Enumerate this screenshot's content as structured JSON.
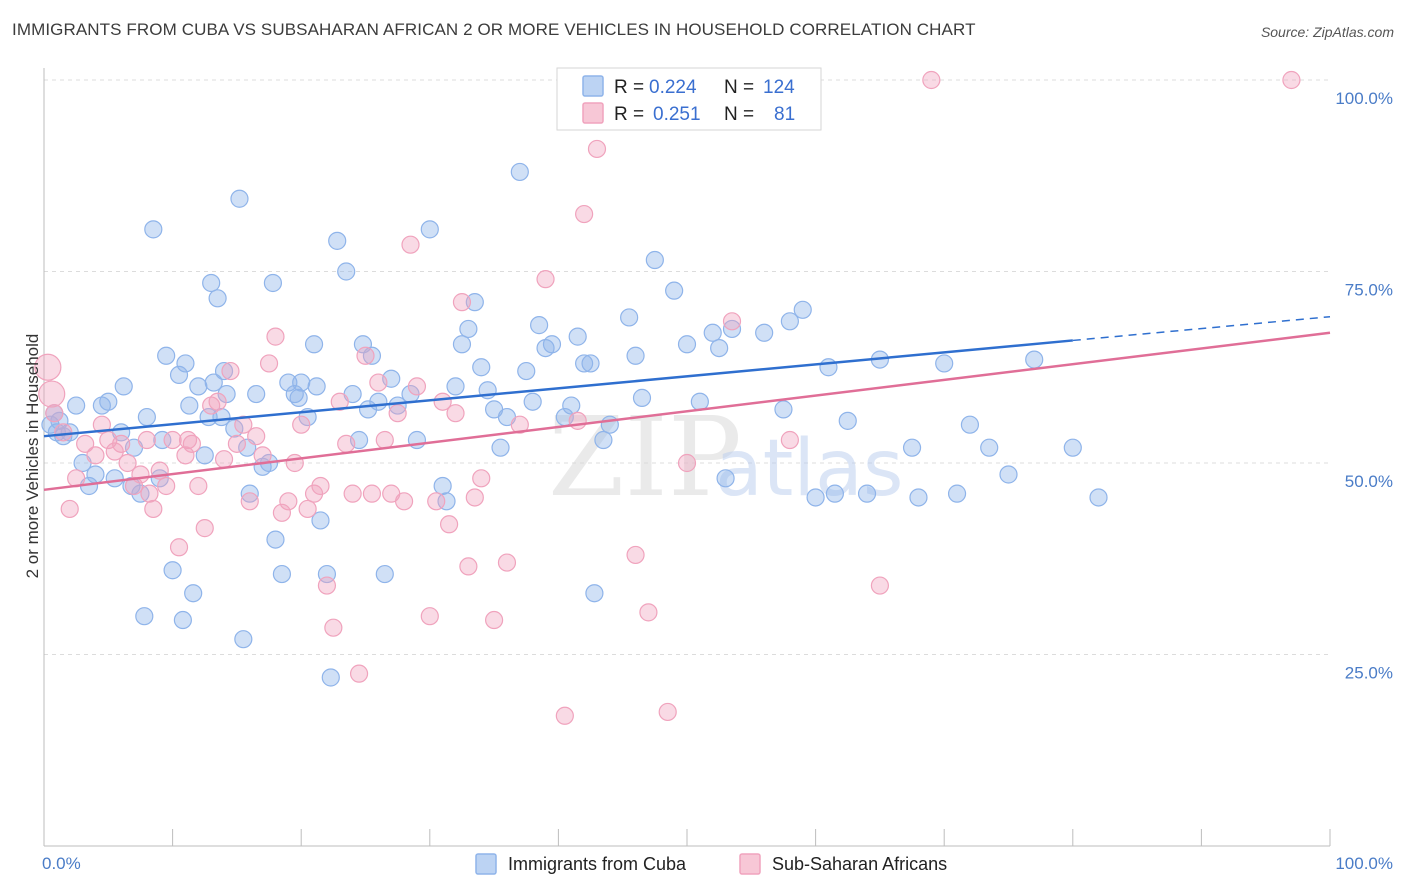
{
  "header": {
    "title": "IMMIGRANTS FROM CUBA VS SUBSAHARAN AFRICAN 2 OR MORE VEHICLES IN HOUSEHOLD CORRELATION CHART",
    "source": "Source: ZipAtlas.com"
  },
  "watermark": {
    "zip": "ZIP",
    "atlas": "atlas"
  },
  "legend": {
    "rows": [
      {
        "r_label": "R =",
        "r_value": "0.224",
        "n_label": "N =",
        "n_value": "124",
        "color": "#8fb4ea"
      },
      {
        "r_label": "R =",
        "r_value": "0.251",
        "n_label": "N =",
        "n_value": "81",
        "color": "#f0a3bd"
      }
    ]
  },
  "chart_data": {
    "type": "scatter",
    "title": "IMMIGRANTS FROM CUBA VS SUBSAHARAN AFRICAN 2 OR MORE VEHICLES IN HOUSEHOLD CORRELATION CHART",
    "xlabel": "",
    "ylabel": "2 or more Vehicles in Household",
    "xlim": [
      0,
      100
    ],
    "ylim": [
      0,
      100
    ],
    "x_ticks": [
      "0.0%",
      "100.0%"
    ],
    "y_ticks": [
      "25.0%",
      "50.0%",
      "75.0%",
      "100.0%"
    ],
    "y_tick_values": [
      25,
      50,
      75,
      100
    ],
    "grid": true,
    "legend_position": "top-center",
    "series": [
      {
        "name": "Immigrants from Cuba",
        "color": "#8fb4ea",
        "line_color": "#2f6fcf",
        "trend": {
          "x0": 0,
          "y0": 53.5,
          "x1": 80,
          "y1": 66,
          "dashed_to_x": 100,
          "dashed_to_y": 69.1
        },
        "points": [
          [
            0.5,
            55
          ],
          [
            0.8,
            56.5
          ],
          [
            1,
            54
          ],
          [
            1.2,
            55.5
          ],
          [
            1.5,
            53.5
          ],
          [
            2,
            54
          ],
          [
            2.5,
            57.5
          ],
          [
            3,
            50
          ],
          [
            3.5,
            47
          ],
          [
            4,
            48.5
          ],
          [
            4.5,
            57.5
          ],
          [
            5,
            58
          ],
          [
            5.5,
            48
          ],
          [
            6,
            54
          ],
          [
            6.2,
            60
          ],
          [
            6.8,
            47
          ],
          [
            7,
            52
          ],
          [
            7.5,
            46
          ],
          [
            7.8,
            30
          ],
          [
            8,
            56
          ],
          [
            8.5,
            80.5
          ],
          [
            9,
            48
          ],
          [
            9.2,
            53
          ],
          [
            9.5,
            64
          ],
          [
            10,
            36
          ],
          [
            10.5,
            61.5
          ],
          [
            10.8,
            29.5
          ],
          [
            11,
            63
          ],
          [
            11.3,
            57.5
          ],
          [
            11.6,
            33
          ],
          [
            12,
            60
          ],
          [
            12.5,
            51
          ],
          [
            12.8,
            56
          ],
          [
            13,
            73.5
          ],
          [
            13.2,
            60.5
          ],
          [
            13.5,
            71.5
          ],
          [
            13.8,
            56
          ],
          [
            14,
            62
          ],
          [
            14.2,
            59
          ],
          [
            14.8,
            54.5
          ],
          [
            15.2,
            84.5
          ],
          [
            15.5,
            27
          ],
          [
            15.8,
            52
          ],
          [
            16,
            46
          ],
          [
            16.5,
            59
          ],
          [
            17,
            49.5
          ],
          [
            17.5,
            50
          ],
          [
            17.8,
            73.5
          ],
          [
            18,
            40
          ],
          [
            18.5,
            35.5
          ],
          [
            19,
            60.5
          ],
          [
            19.5,
            59
          ],
          [
            19.8,
            58.5
          ],
          [
            20,
            60.5
          ],
          [
            20.5,
            56
          ],
          [
            21,
            65.5
          ],
          [
            21.2,
            60
          ],
          [
            21.5,
            42.5
          ],
          [
            22,
            35.5
          ],
          [
            22.3,
            22
          ],
          [
            22.8,
            79
          ],
          [
            23.5,
            75
          ],
          [
            24,
            59
          ],
          [
            24.5,
            53
          ],
          [
            24.8,
            65.5
          ],
          [
            25.2,
            57
          ],
          [
            25.5,
            64
          ],
          [
            26,
            58
          ],
          [
            26.5,
            35.5
          ],
          [
            27,
            61
          ],
          [
            27.5,
            57.5
          ],
          [
            28.5,
            59
          ],
          [
            29,
            53
          ],
          [
            30,
            80.5
          ],
          [
            31,
            47
          ],
          [
            31.3,
            45
          ],
          [
            32,
            60
          ],
          [
            32.5,
            65.5
          ],
          [
            33,
            67.5
          ],
          [
            33.5,
            71
          ],
          [
            34,
            62.5
          ],
          [
            34.5,
            59.5
          ],
          [
            35,
            57
          ],
          [
            35.5,
            52
          ],
          [
            36,
            56
          ],
          [
            37,
            88
          ],
          [
            37.5,
            62
          ],
          [
            38,
            58
          ],
          [
            38.5,
            68
          ],
          [
            39,
            65
          ],
          [
            39.5,
            65.5
          ],
          [
            40.5,
            56
          ],
          [
            41,
            57.5
          ],
          [
            41.5,
            66.5
          ],
          [
            42,
            63
          ],
          [
            42.5,
            63
          ],
          [
            42.8,
            33
          ],
          [
            43.5,
            53
          ],
          [
            44,
            55
          ],
          [
            45.5,
            69
          ],
          [
            46,
            64
          ],
          [
            46.5,
            58.5
          ],
          [
            47.5,
            76.5
          ],
          [
            49,
            72.5
          ],
          [
            50,
            65.5
          ],
          [
            51,
            58
          ],
          [
            52,
            67
          ],
          [
            52.5,
            65
          ],
          [
            53,
            48
          ],
          [
            53.5,
            67.5
          ],
          [
            56,
            67
          ],
          [
            57.5,
            57
          ],
          [
            58,
            68.5
          ],
          [
            59,
            70
          ],
          [
            60,
            45.5
          ],
          [
            61,
            62.5
          ],
          [
            61.5,
            46
          ],
          [
            62.5,
            55.5
          ],
          [
            64,
            46
          ],
          [
            65,
            63.5
          ],
          [
            67.5,
            52
          ],
          [
            68,
            45.5
          ],
          [
            70,
            63
          ],
          [
            71,
            46
          ],
          [
            72,
            55
          ],
          [
            73.5,
            52
          ],
          [
            75,
            48.5
          ],
          [
            77,
            63.5
          ],
          [
            80,
            52
          ],
          [
            82,
            45.5
          ]
        ]
      },
      {
        "name": "Sub-Saharan Africans",
        "color": "#f0a3bd",
        "line_color": "#e06e97",
        "trend": {
          "x0": 0,
          "y0": 46.5,
          "x1": 100,
          "y1": 67
        },
        "points": [
          [
            0.3,
            62.5
          ],
          [
            0.6,
            59
          ],
          [
            0.8,
            56.5
          ],
          [
            1.5,
            54
          ],
          [
            2,
            44
          ],
          [
            2.5,
            48
          ],
          [
            3.2,
            52.5
          ],
          [
            4,
            51
          ],
          [
            4.5,
            55
          ],
          [
            5,
            53
          ],
          [
            5.5,
            51.5
          ],
          [
            6,
            52.5
          ],
          [
            6.5,
            50
          ],
          [
            7,
            47
          ],
          [
            7.5,
            48.5
          ],
          [
            8,
            53
          ],
          [
            8.2,
            46
          ],
          [
            8.5,
            44
          ],
          [
            9,
            49
          ],
          [
            9.5,
            47
          ],
          [
            10,
            53
          ],
          [
            10.5,
            39
          ],
          [
            11,
            51
          ],
          [
            11.2,
            53
          ],
          [
            11.5,
            52.5
          ],
          [
            12,
            47
          ],
          [
            12.5,
            41.5
          ],
          [
            13,
            57.5
          ],
          [
            13.5,
            58
          ],
          [
            14,
            50.5
          ],
          [
            14.5,
            62
          ],
          [
            15,
            52.5
          ],
          [
            15.5,
            55
          ],
          [
            16,
            45
          ],
          [
            16.5,
            53.5
          ],
          [
            17,
            51
          ],
          [
            17.5,
            63
          ],
          [
            18,
            66.5
          ],
          [
            18.5,
            43.5
          ],
          [
            19,
            45
          ],
          [
            19.5,
            50
          ],
          [
            20,
            55
          ],
          [
            20.5,
            44
          ],
          [
            21,
            46
          ],
          [
            21.5,
            47
          ],
          [
            22,
            34
          ],
          [
            22.5,
            28.5
          ],
          [
            23,
            58
          ],
          [
            23.5,
            52.5
          ],
          [
            24,
            46
          ],
          [
            24.5,
            22.5
          ],
          [
            25,
            64
          ],
          [
            25.5,
            46
          ],
          [
            26,
            60.5
          ],
          [
            26.5,
            53
          ],
          [
            27,
            46
          ],
          [
            27.5,
            56.5
          ],
          [
            28,
            45
          ],
          [
            28.5,
            78.5
          ],
          [
            29,
            60
          ],
          [
            30,
            30
          ],
          [
            30.5,
            45
          ],
          [
            31,
            58
          ],
          [
            31.5,
            42
          ],
          [
            32,
            56.5
          ],
          [
            32.5,
            71
          ],
          [
            33,
            36.5
          ],
          [
            33.5,
            45.5
          ],
          [
            34,
            48
          ],
          [
            35,
            29.5
          ],
          [
            36,
            37
          ],
          [
            37,
            55
          ],
          [
            39,
            74
          ],
          [
            40.5,
            17
          ],
          [
            41.5,
            55.5
          ],
          [
            42,
            82.5
          ],
          [
            43,
            91
          ],
          [
            46,
            38
          ],
          [
            47,
            30.5
          ],
          [
            48.5,
            17.5
          ],
          [
            50,
            50
          ],
          [
            53.5,
            68.5
          ],
          [
            58,
            53
          ],
          [
            65,
            34
          ],
          [
            69,
            100
          ],
          [
            97,
            100
          ]
        ]
      }
    ]
  },
  "bottom_legend": {
    "items": [
      {
        "label": "Immigrants from Cuba",
        "color": "#8fb4ea"
      },
      {
        "label": "Sub-Saharan Africans",
        "color": "#f0a3bd"
      }
    ]
  }
}
